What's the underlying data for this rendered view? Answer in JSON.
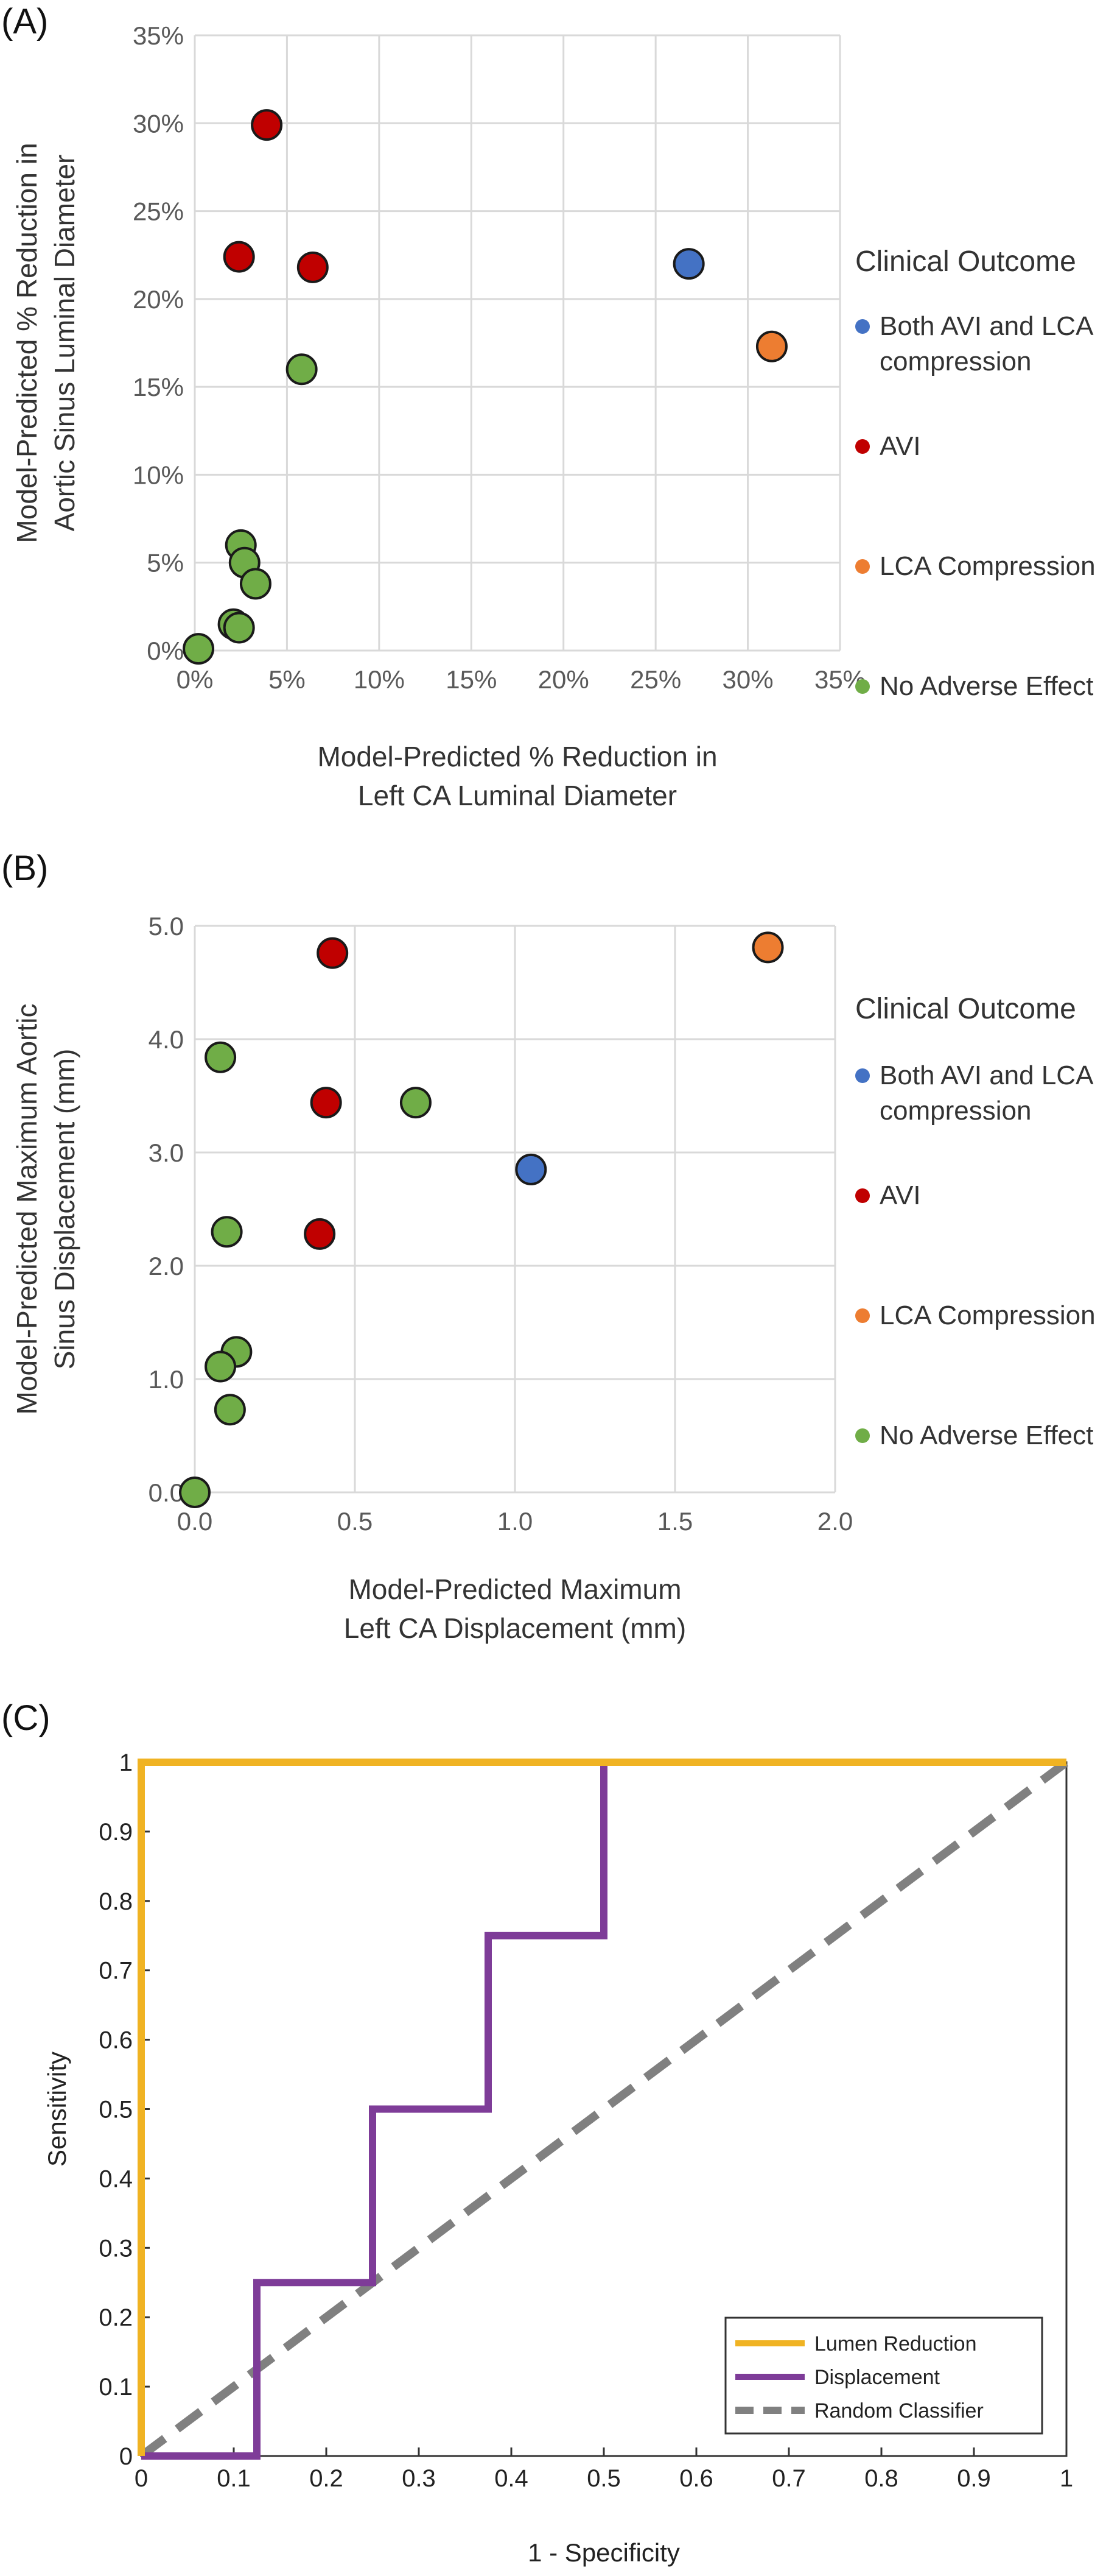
{
  "chart_data": [
    {
      "type": "scatter",
      "panel_label": "(A)",
      "xlabel_lines": [
        "Model-Predicted % Reduction in",
        "Left CA Luminal Diameter"
      ],
      "ylabel_lines": [
        "Model-Predicted % Reduction in",
        "Aortic Sinus Luminal Diameter"
      ],
      "xlim": [
        0,
        35
      ],
      "ylim": [
        0,
        35
      ],
      "x_ticks": [
        "0%",
        "5%",
        "10%",
        "15%",
        "20%",
        "25%",
        "30%",
        "35%"
      ],
      "y_ticks": [
        "0%",
        "5%",
        "10%",
        "15%",
        "20%",
        "25%",
        "30%",
        "35%"
      ],
      "grid": true,
      "legend": {
        "title": "Clinical Outcome",
        "placement": "right",
        "entries": [
          {
            "lines": [
              "Both AVI and LCA",
              "compression"
            ],
            "color": "#4472C4"
          },
          {
            "lines": [
              "AVI"
            ],
            "color": "#C00000"
          },
          {
            "lines": [
              "LCA Compression"
            ],
            "color": "#ED7D31"
          },
          {
            "lines": [
              "No Adverse Effect"
            ],
            "color": "#70AD47"
          }
        ]
      },
      "series": [
        {
          "color": "#4472C4",
          "points": [
            [
              26.8,
              22.0
            ]
          ]
        },
        {
          "color": "#C00000",
          "points": [
            [
              3.9,
              29.9
            ],
            [
              2.4,
              22.4
            ],
            [
              6.4,
              21.8
            ]
          ]
        },
        {
          "color": "#ED7D31",
          "points": [
            [
              31.3,
              17.3
            ]
          ]
        },
        {
          "color": "#70AD47",
          "points": [
            [
              5.8,
              16.0
            ],
            [
              2.5,
              6.0
            ],
            [
              2.7,
              5.0
            ],
            [
              3.3,
              3.8
            ],
            [
              2.1,
              1.5
            ],
            [
              2.4,
              1.3
            ],
            [
              0.2,
              0.1
            ]
          ]
        }
      ]
    },
    {
      "type": "scatter",
      "panel_label": "(B)",
      "xlabel_lines": [
        "Model-Predicted Maximum",
        "Left CA Displacement (mm)"
      ],
      "ylabel_lines": [
        "Model-Predicted Maximum Aortic",
        "Sinus Displacement (mm)"
      ],
      "xlim": [
        0,
        2
      ],
      "ylim": [
        0,
        5
      ],
      "x_ticks": [
        "0.0",
        "0.5",
        "1.0",
        "1.5",
        "2.0"
      ],
      "y_ticks": [
        "0.0",
        "1.0",
        "2.0",
        "3.0",
        "4.0",
        "5.0"
      ],
      "grid": true,
      "legend": {
        "title": "Clinical Outcome",
        "placement": "right",
        "entries": [
          {
            "lines": [
              "Both AVI and LCA",
              "compression"
            ],
            "color": "#4472C4"
          },
          {
            "lines": [
              "AVI"
            ],
            "color": "#C00000"
          },
          {
            "lines": [
              "LCA Compression"
            ],
            "color": "#ED7D31"
          },
          {
            "lines": [
              "No Adverse Effect"
            ],
            "color": "#70AD47"
          }
        ]
      },
      "series": [
        {
          "color": "#4472C4",
          "points": [
            [
              1.05,
              2.85
            ]
          ]
        },
        {
          "color": "#C00000",
          "points": [
            [
              0.43,
              4.76
            ],
            [
              0.41,
              3.44
            ],
            [
              0.39,
              2.28
            ]
          ]
        },
        {
          "color": "#ED7D31",
          "points": [
            [
              1.79,
              4.81
            ]
          ]
        },
        {
          "color": "#70AD47",
          "points": [
            [
              0.08,
              3.84
            ],
            [
              0.69,
              3.44
            ],
            [
              0.1,
              2.3
            ],
            [
              0.13,
              1.24
            ],
            [
              0.08,
              1.11
            ],
            [
              0.11,
              0.73
            ],
            [
              0.0,
              0.0
            ]
          ]
        }
      ]
    },
    {
      "type": "line",
      "panel_label": "(C)",
      "xlabel": "1 - Specificity",
      "ylabel": "Sensitivity",
      "xlim": [
        0,
        1
      ],
      "ylim": [
        0,
        1
      ],
      "x_ticks": [
        "0",
        "0.1",
        "0.2",
        "0.3",
        "0.4",
        "0.5",
        "0.6",
        "0.7",
        "0.8",
        "0.9",
        "1"
      ],
      "y_ticks": [
        "0",
        "0.1",
        "0.2",
        "0.3",
        "0.4",
        "0.5",
        "0.6",
        "0.7",
        "0.8",
        "0.9",
        "1"
      ],
      "grid": false,
      "legend_placement": "bottom-right",
      "series": [
        {
          "name": "Lumen Reduction",
          "color": "#F0B323",
          "style": "solid",
          "x": [
            0,
            0,
            1
          ],
          "y": [
            0,
            1,
            1
          ]
        },
        {
          "name": "Displacement",
          "color": "#7E3C98",
          "style": "solid",
          "x": [
            0,
            0.125,
            0.125,
            0.25,
            0.25,
            0.375,
            0.375,
            0.5,
            0.5,
            1
          ],
          "y": [
            0,
            0,
            0.25,
            0.25,
            0.5,
            0.5,
            0.75,
            0.75,
            1,
            1
          ]
        },
        {
          "name": "Random Classifier",
          "color": "#808080",
          "style": "dashed",
          "x": [
            0,
            1
          ],
          "y": [
            0,
            1
          ]
        }
      ]
    }
  ]
}
